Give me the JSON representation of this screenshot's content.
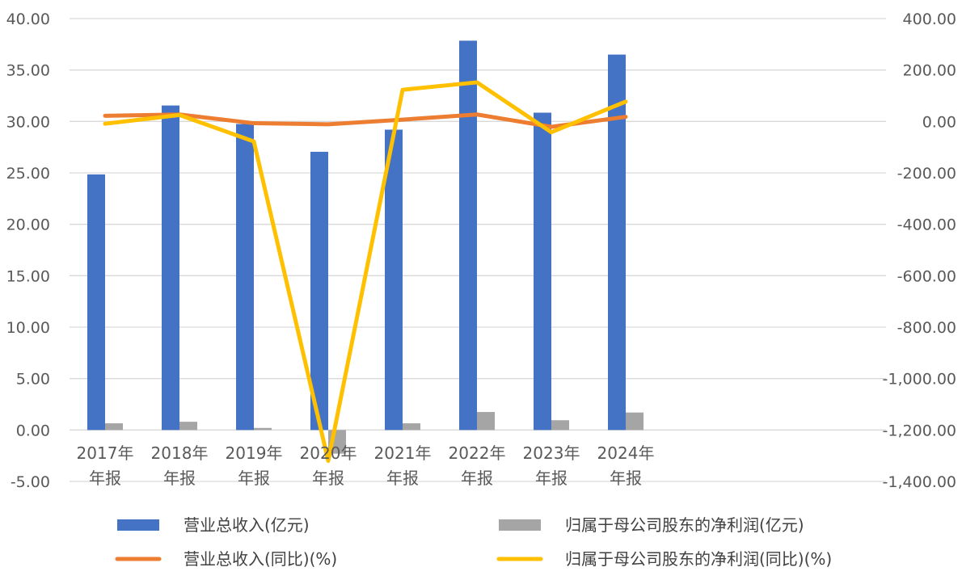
{
  "chart_data": {
    "type": "bar",
    "categories": [
      [
        "2017年",
        "年报"
      ],
      [
        "2018年",
        "年报"
      ],
      [
        "2019年",
        "年报"
      ],
      [
        "2020年",
        "年报"
      ],
      [
        "2021年",
        "年报"
      ],
      [
        "2022年",
        "年报"
      ],
      [
        "2023年",
        "年报"
      ],
      [
        "2024年",
        "年报"
      ]
    ],
    "series": [
      {
        "name": "营业总收入(亿元)",
        "type": "bar",
        "axis": "left",
        "color": "#4472C4",
        "values": [
          24.85,
          31.55,
          29.75,
          27.05,
          29.2,
          37.85,
          30.85,
          36.5
        ]
      },
      {
        "name": "归属于母公司股东的净利润(亿元)",
        "type": "bar",
        "axis": "left",
        "color": "#A5A5A5",
        "values": [
          0.65,
          0.8,
          0.2,
          -2.3,
          0.65,
          1.75,
          0.95,
          1.7
        ]
      },
      {
        "name": "营业总收入(同比)(%)",
        "type": "line",
        "axis": "right",
        "color": "#ED7D31",
        "values": [
          22,
          27,
          -7,
          -11,
          7,
          27,
          -21,
          18
        ]
      },
      {
        "name": "归属于母公司股东的净利润(同比)(%)",
        "type": "line",
        "axis": "right",
        "color": "#FFC000",
        "values": [
          -9,
          25,
          -78,
          -1320,
          123,
          152,
          -42,
          77
        ]
      }
    ],
    "y_left": {
      "ylim": [
        -5,
        40
      ],
      "ticks": [
        "40.00",
        "35.00",
        "30.00",
        "25.00",
        "20.00",
        "15.00",
        "10.00",
        "5.00",
        "0.00",
        "-5.00"
      ]
    },
    "y_right": {
      "ylim": [
        -1400,
        400
      ],
      "ticks": [
        "400.00",
        "200.00",
        "0.00",
        "-200.00",
        "-400.00",
        "-600.00",
        "-800.00",
        "-1,000.00",
        "-1,200.00",
        "-1,400.00"
      ]
    },
    "grid": true,
    "legend_position": "bottom"
  }
}
